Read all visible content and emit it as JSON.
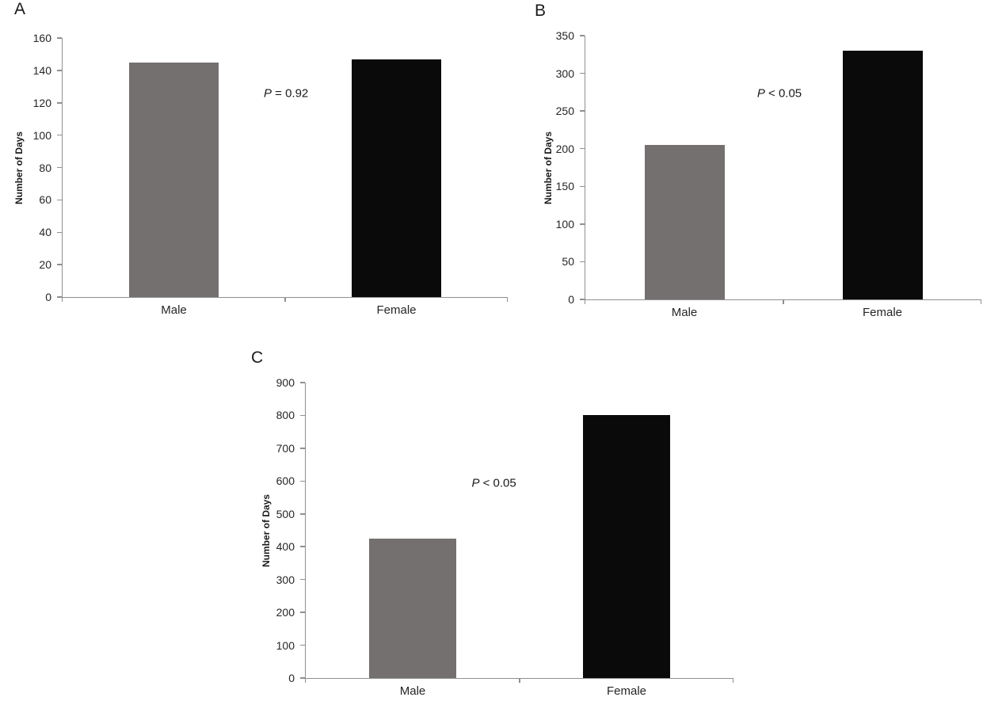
{
  "figure": {
    "description": "Three-panel bar chart figure comparing Male vs Female number of days",
    "background": "#ffffff"
  },
  "colors": {
    "male_bar": "#757070",
    "female_bar": "#0a0a0a",
    "axis_line": "#909090",
    "text": "#262626"
  },
  "chart_data": [
    {
      "type": "bar",
      "panel_label": "A",
      "title": "",
      "categories": [
        "Male",
        "Female"
      ],
      "values": [
        145,
        147
      ],
      "bar_colors": [
        "#757070",
        "#0a0a0a"
      ],
      "xlabel": "",
      "ylabel": "Number of Days",
      "ylim": [
        0,
        160
      ],
      "yticks": [
        0,
        20,
        40,
        60,
        80,
        100,
        120,
        140,
        160
      ],
      "grid": false,
      "legend": "none",
      "annotation": {
        "text": "P = 0.92",
        "symbol": "P",
        "rest": " = 0.92"
      }
    },
    {
      "type": "bar",
      "panel_label": "B",
      "title": "",
      "categories": [
        "Male",
        "Female"
      ],
      "values": [
        205,
        330
      ],
      "bar_colors": [
        "#757070",
        "#0a0a0a"
      ],
      "xlabel": "",
      "ylabel": "Number of Days",
      "ylim": [
        0,
        350
      ],
      "yticks": [
        0,
        50,
        100,
        150,
        200,
        250,
        300,
        350
      ],
      "grid": false,
      "legend": "none",
      "annotation": {
        "text": "P < 0.05",
        "symbol": "P",
        "rest": " < 0.05"
      }
    },
    {
      "type": "bar",
      "panel_label": "C",
      "title": "",
      "categories": [
        "Male",
        "Female"
      ],
      "values": [
        425,
        800
      ],
      "bar_colors": [
        "#757070",
        "#0a0a0a"
      ],
      "xlabel": "",
      "ylabel": "Number of Days",
      "ylim": [
        0,
        900
      ],
      "yticks": [
        0,
        100,
        200,
        300,
        400,
        500,
        600,
        700,
        800,
        900
      ],
      "grid": false,
      "legend": "none",
      "annotation": {
        "text": "P < 0.05",
        "symbol": "P",
        "rest": " < 0.05"
      }
    }
  ]
}
